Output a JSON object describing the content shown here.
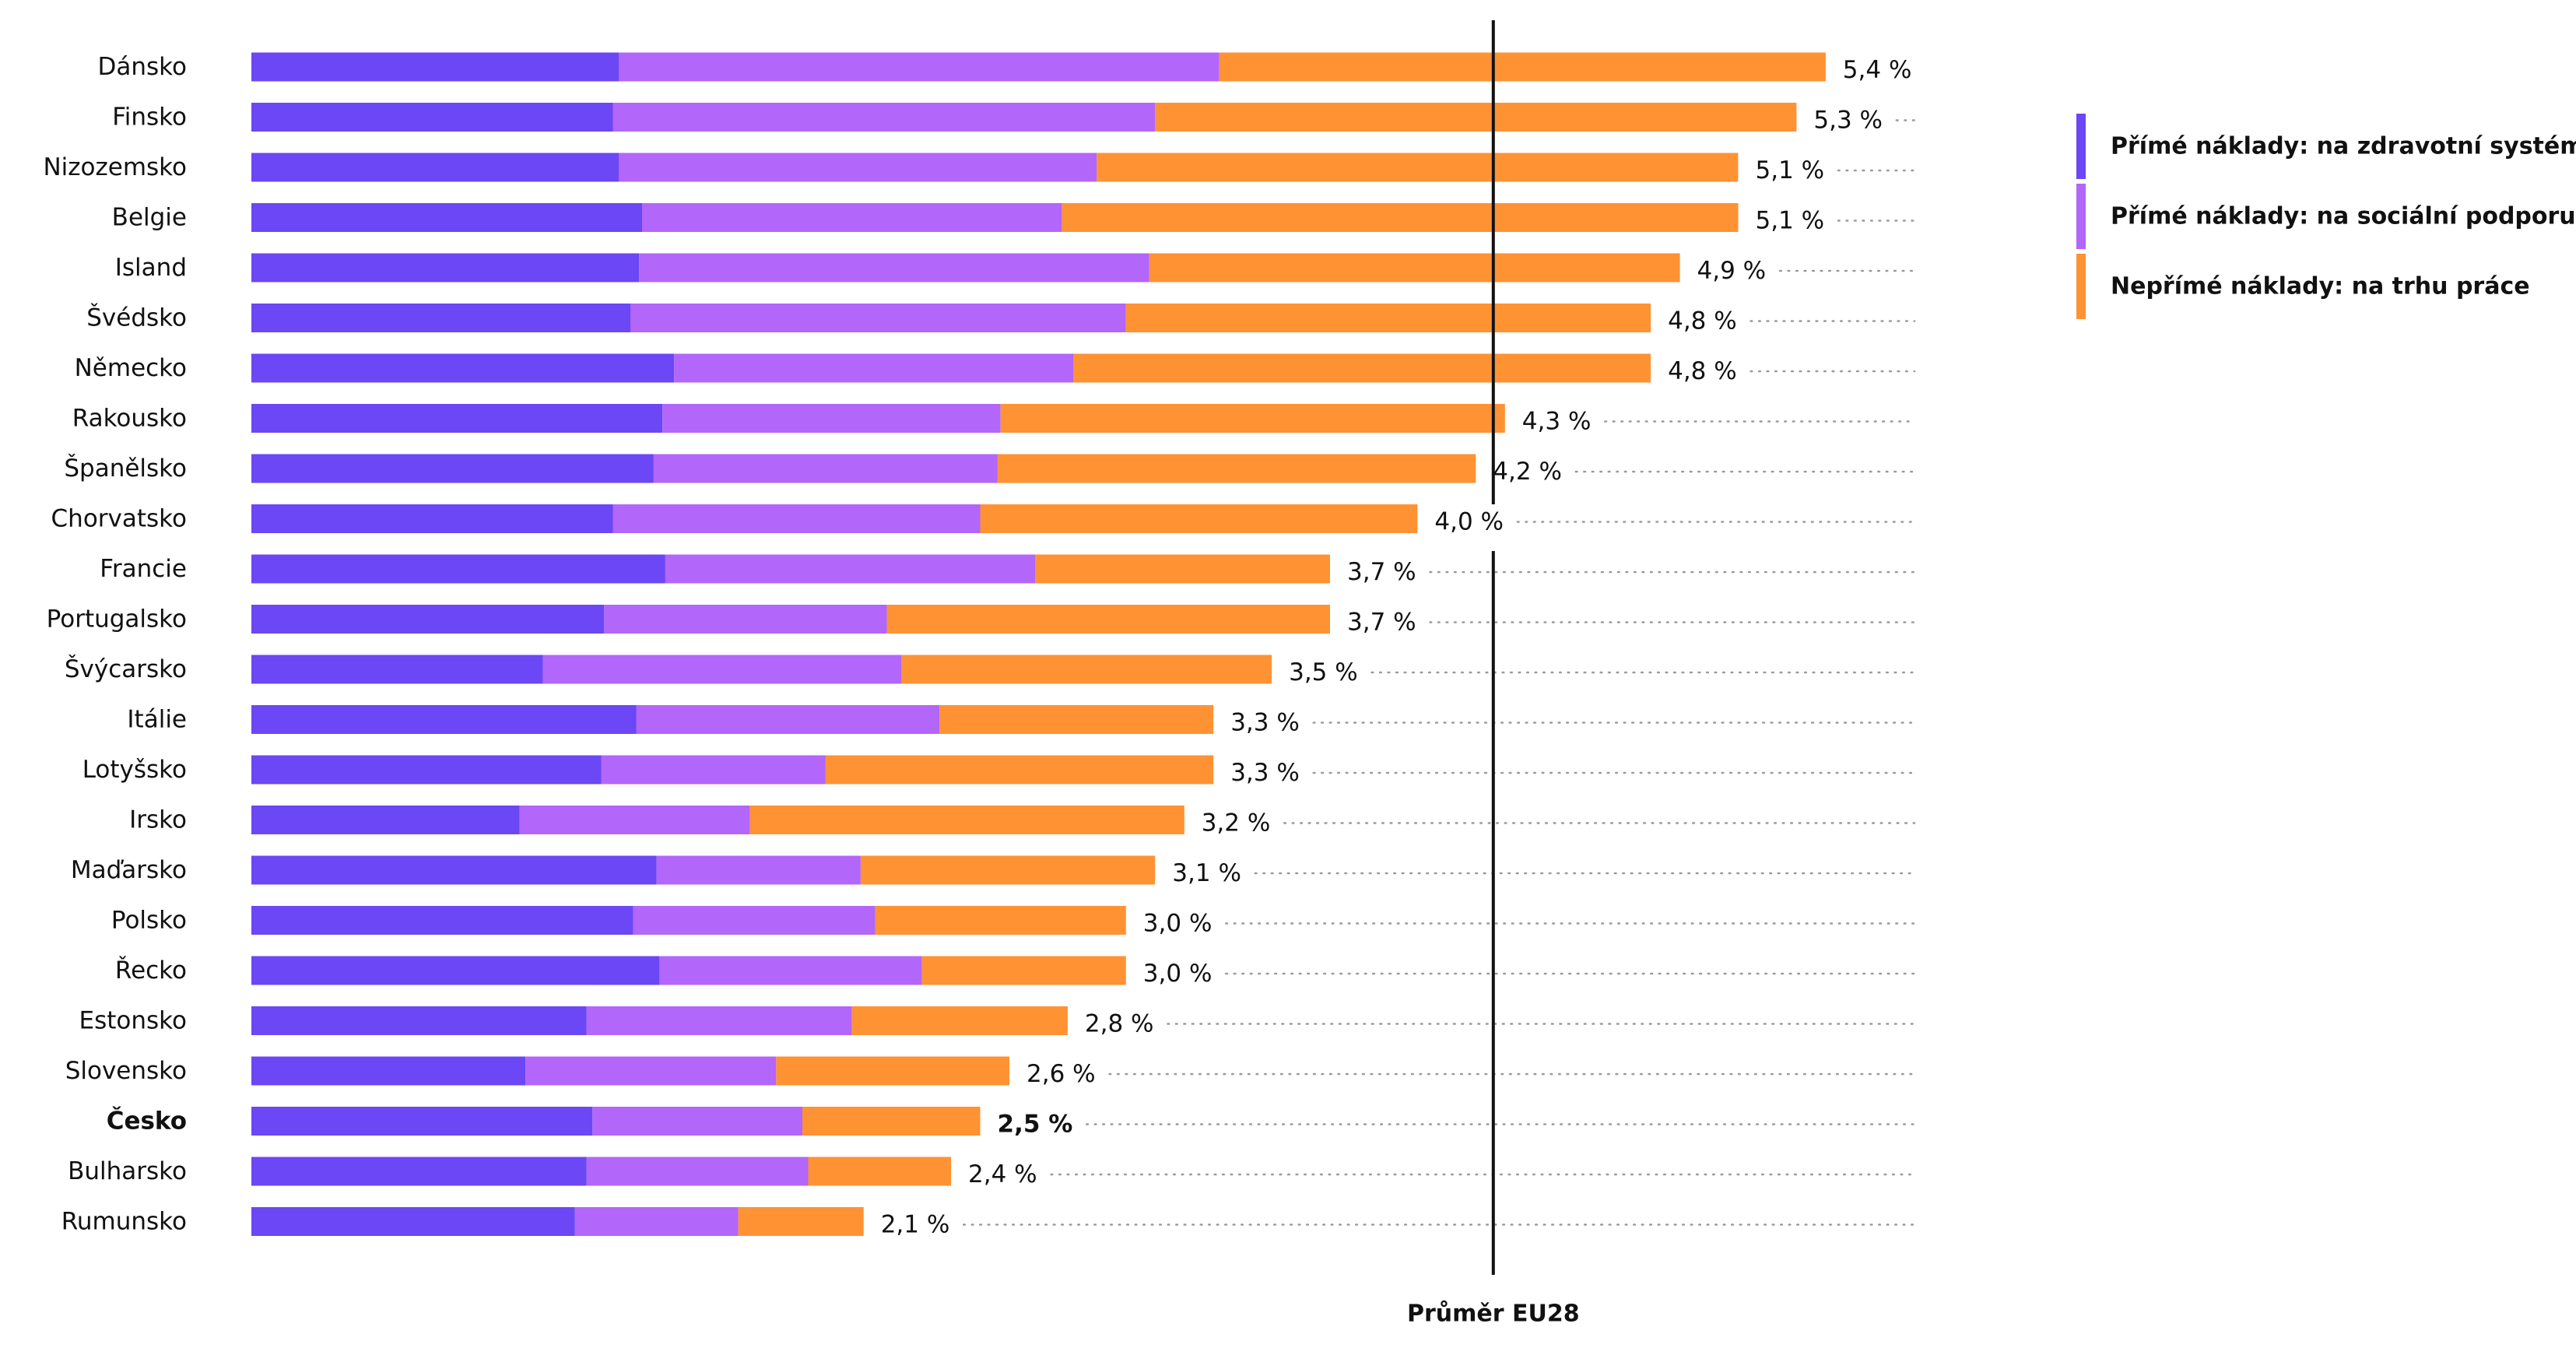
{
  "chart_data": {
    "type": "bar",
    "orientation": "horizontal",
    "stacked": true,
    "categories": [
      "Dánsko",
      "Finsko",
      "Nizozemsko",
      "Belgie",
      "Island",
      "Švédsko",
      "Německo",
      "Rakousko",
      "Španělsko",
      "Chorvatsko",
      "Francie",
      "Portugalsko",
      "Švýcarsko",
      "Itálie",
      "Lotyšsko",
      "Irsko",
      "Maďarsko",
      "Polsko",
      "Řecko",
      "Estonsko",
      "Slovensko",
      "Česko",
      "Bulharsko",
      "Rumunsko"
    ],
    "highlight_category": "Česko",
    "series": [
      {
        "name": "Přímé náklady: na zdravotní systém",
        "color": "#6b47f5",
        "values": [
          1.26,
          1.24,
          1.26,
          1.34,
          1.33,
          1.3,
          1.45,
          1.41,
          1.38,
          1.24,
          1.42,
          1.21,
          1.0,
          1.32,
          1.2,
          0.92,
          1.39,
          1.31,
          1.4,
          1.15,
          0.94,
          1.17,
          1.15,
          1.11
        ]
      },
      {
        "name": "Přímé náklady: na sociální podporu",
        "color": "#b366fa",
        "values": [
          2.06,
          1.86,
          1.64,
          1.44,
          1.75,
          1.7,
          1.37,
          1.16,
          1.18,
          1.26,
          1.27,
          0.97,
          1.23,
          1.04,
          0.77,
          0.79,
          0.7,
          0.83,
          0.9,
          0.91,
          0.86,
          0.72,
          0.76,
          0.56
        ]
      },
      {
        "name": "Nepřímé náklady: na trhu práce",
        "color": "#ff9233",
        "values": [
          2.08,
          2.2,
          2.2,
          2.32,
          1.82,
          1.8,
          1.98,
          1.73,
          1.64,
          1.5,
          1.01,
          1.52,
          1.27,
          0.94,
          1.33,
          1.49,
          1.01,
          0.86,
          0.7,
          0.74,
          0.8,
          0.61,
          0.49,
          0.43
        ]
      }
    ],
    "total_labels": [
      "5,4 %",
      "5,3 %",
      "5,1 %",
      "5,1 %",
      "4,9 %",
      "4,8 %",
      "4,8 %",
      "4,3 %",
      "4,2 %",
      "4,0 %",
      "3,7 %",
      "3,7 %",
      "3,5 %",
      "3,3 %",
      "3,3 %",
      "3,2 %",
      "3,1 %",
      "3,0 %",
      "3,0 %",
      "2,8 %",
      "2,6 %",
      "2,5 %",
      "2,4 %",
      "2,1 %"
    ],
    "reference_line": {
      "value": 4.26,
      "label": "Průměr EU28"
    },
    "xlim": [
      0,
      5.7
    ],
    "grid": "dotted leader lines",
    "legend_position": "top-right",
    "xlabel": "",
    "ylabel": ""
  }
}
